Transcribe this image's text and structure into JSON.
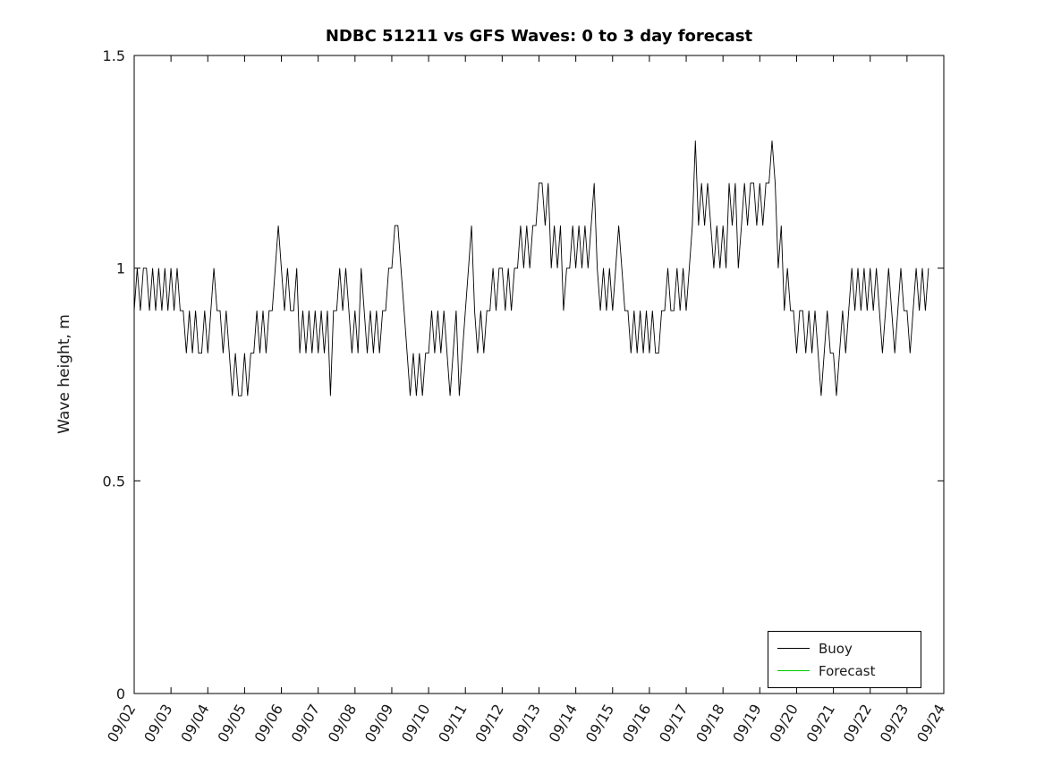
{
  "figure": {
    "background": "#ffffff"
  },
  "chart_data": {
    "type": "line",
    "title": "NDBC 51211 vs GFS Waves: 0 to 3 day forecast",
    "xlabel": "",
    "ylabel": "Wave height, m",
    "grid": false,
    "x_tick_labels": [
      "09/02",
      "09/03",
      "09/04",
      "09/05",
      "09/06",
      "09/07",
      "09/08",
      "09/09",
      "09/10",
      "09/11",
      "09/12",
      "09/13",
      "09/14",
      "09/15",
      "09/16",
      "09/17",
      "09/18",
      "09/19",
      "09/20",
      "09/21",
      "09/22",
      "09/23",
      "09/24"
    ],
    "x_range_days": [
      0,
      22
    ],
    "ylim": [
      0,
      1.5
    ],
    "y_ticks": [
      0,
      0.5,
      1,
      1.5
    ],
    "y_tick_labels": [
      "0",
      "0.5",
      "1",
      "1.5"
    ],
    "legend": {
      "position": "southeast",
      "border": true
    },
    "series": [
      {
        "name": "Buoy",
        "color": "#000000",
        "x_start_day": 0,
        "x_step_hours": 2,
        "values": [
          0.9,
          1.0,
          0.9,
          1.0,
          1.0,
          0.9,
          1.0,
          0.9,
          1.0,
          0.9,
          1.0,
          0.9,
          1.0,
          0.9,
          1.0,
          0.9,
          0.9,
          0.8,
          0.9,
          0.8,
          0.9,
          0.8,
          0.8,
          0.9,
          0.8,
          0.9,
          1.0,
          0.9,
          0.9,
          0.8,
          0.9,
          0.8,
          0.7,
          0.8,
          0.7,
          0.7,
          0.8,
          0.7,
          0.8,
          0.8,
          0.9,
          0.8,
          0.9,
          0.8,
          0.9,
          0.9,
          1.0,
          1.1,
          1.0,
          0.9,
          1.0,
          0.9,
          0.9,
          1.0,
          0.8,
          0.9,
          0.8,
          0.9,
          0.8,
          0.9,
          0.8,
          0.9,
          0.8,
          0.9,
          0.7,
          0.9,
          0.9,
          1.0,
          0.9,
          1.0,
          0.9,
          0.8,
          0.9,
          0.8,
          1.0,
          0.9,
          0.8,
          0.9,
          0.8,
          0.9,
          0.8,
          0.9,
          0.9,
          1.0,
          1.0,
          1.1,
          1.1,
          1.0,
          0.9,
          0.8,
          0.7,
          0.8,
          0.7,
          0.8,
          0.7,
          0.8,
          0.8,
          0.9,
          0.8,
          0.9,
          0.8,
          0.9,
          0.8,
          0.7,
          0.8,
          0.9,
          0.7,
          0.8,
          0.9,
          1.0,
          1.1,
          0.9,
          0.8,
          0.9,
          0.8,
          0.9,
          0.9,
          1.0,
          0.9,
          1.0,
          1.0,
          0.9,
          1.0,
          0.9,
          1.0,
          1.0,
          1.1,
          1.0,
          1.1,
          1.0,
          1.1,
          1.1,
          1.2,
          1.2,
          1.1,
          1.2,
          1.0,
          1.1,
          1.0,
          1.1,
          0.9,
          1.0,
          1.0,
          1.1,
          1.0,
          1.1,
          1.0,
          1.1,
          1.0,
          1.1,
          1.2,
          1.0,
          0.9,
          1.0,
          0.9,
          1.0,
          0.9,
          1.0,
          1.1,
          1.0,
          0.9,
          0.9,
          0.8,
          0.9,
          0.8,
          0.9,
          0.8,
          0.9,
          0.8,
          0.9,
          0.8,
          0.8,
          0.9,
          0.9,
          1.0,
          0.9,
          0.9,
          1.0,
          0.9,
          1.0,
          0.9,
          1.0,
          1.1,
          1.3,
          1.1,
          1.2,
          1.1,
          1.2,
          1.1,
          1.0,
          1.1,
          1.0,
          1.1,
          1.0,
          1.2,
          1.1,
          1.2,
          1.0,
          1.1,
          1.2,
          1.1,
          1.2,
          1.2,
          1.1,
          1.2,
          1.1,
          1.2,
          1.2,
          1.3,
          1.2,
          1.0,
          1.1,
          0.9,
          1.0,
          0.9,
          0.9,
          0.8,
          0.9,
          0.9,
          0.8,
          0.9,
          0.8,
          0.9,
          0.8,
          0.7,
          0.8,
          0.9,
          0.8,
          0.8,
          0.7,
          0.8,
          0.9,
          0.8,
          0.9,
          1.0,
          0.9,
          1.0,
          0.9,
          1.0,
          0.9,
          1.0,
          0.9,
          1.0,
          0.9,
          0.8,
          0.9,
          1.0,
          0.9,
          0.8,
          0.9,
          1.0,
          0.9,
          0.9,
          0.8,
          0.9,
          1.0,
          0.9,
          1.0,
          0.9,
          1.0
        ]
      },
      {
        "name": "Forecast",
        "color": "#00cc00",
        "x_start_day": 0,
        "x_step_hours": 2,
        "values": []
      }
    ]
  }
}
